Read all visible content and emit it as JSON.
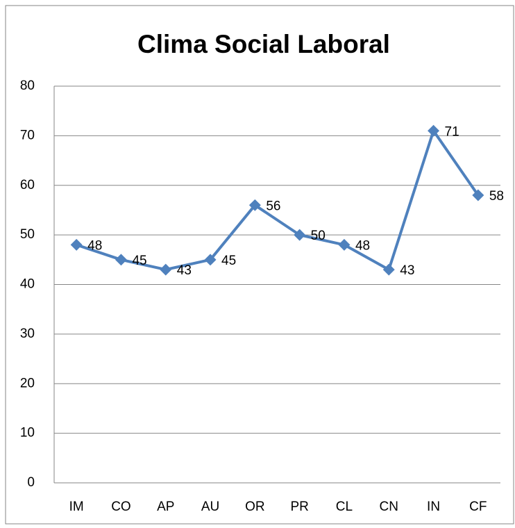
{
  "chart_data": {
    "type": "line",
    "title": "Clima Social Laboral",
    "categories": [
      "IM",
      "CO",
      "AP",
      "AU",
      "OR",
      "PR",
      "CL",
      "CN",
      "IN",
      "CF"
    ],
    "series": [
      {
        "name": "Clima Social Laboral",
        "color": "#4f81bd",
        "values": [
          48,
          45,
          43,
          45,
          56,
          50,
          48,
          43,
          71,
          58
        ]
      }
    ],
    "ylim": [
      0,
      80
    ],
    "yticks": [
      0,
      10,
      20,
      30,
      40,
      50,
      60,
      70,
      80
    ],
    "grid": true
  }
}
